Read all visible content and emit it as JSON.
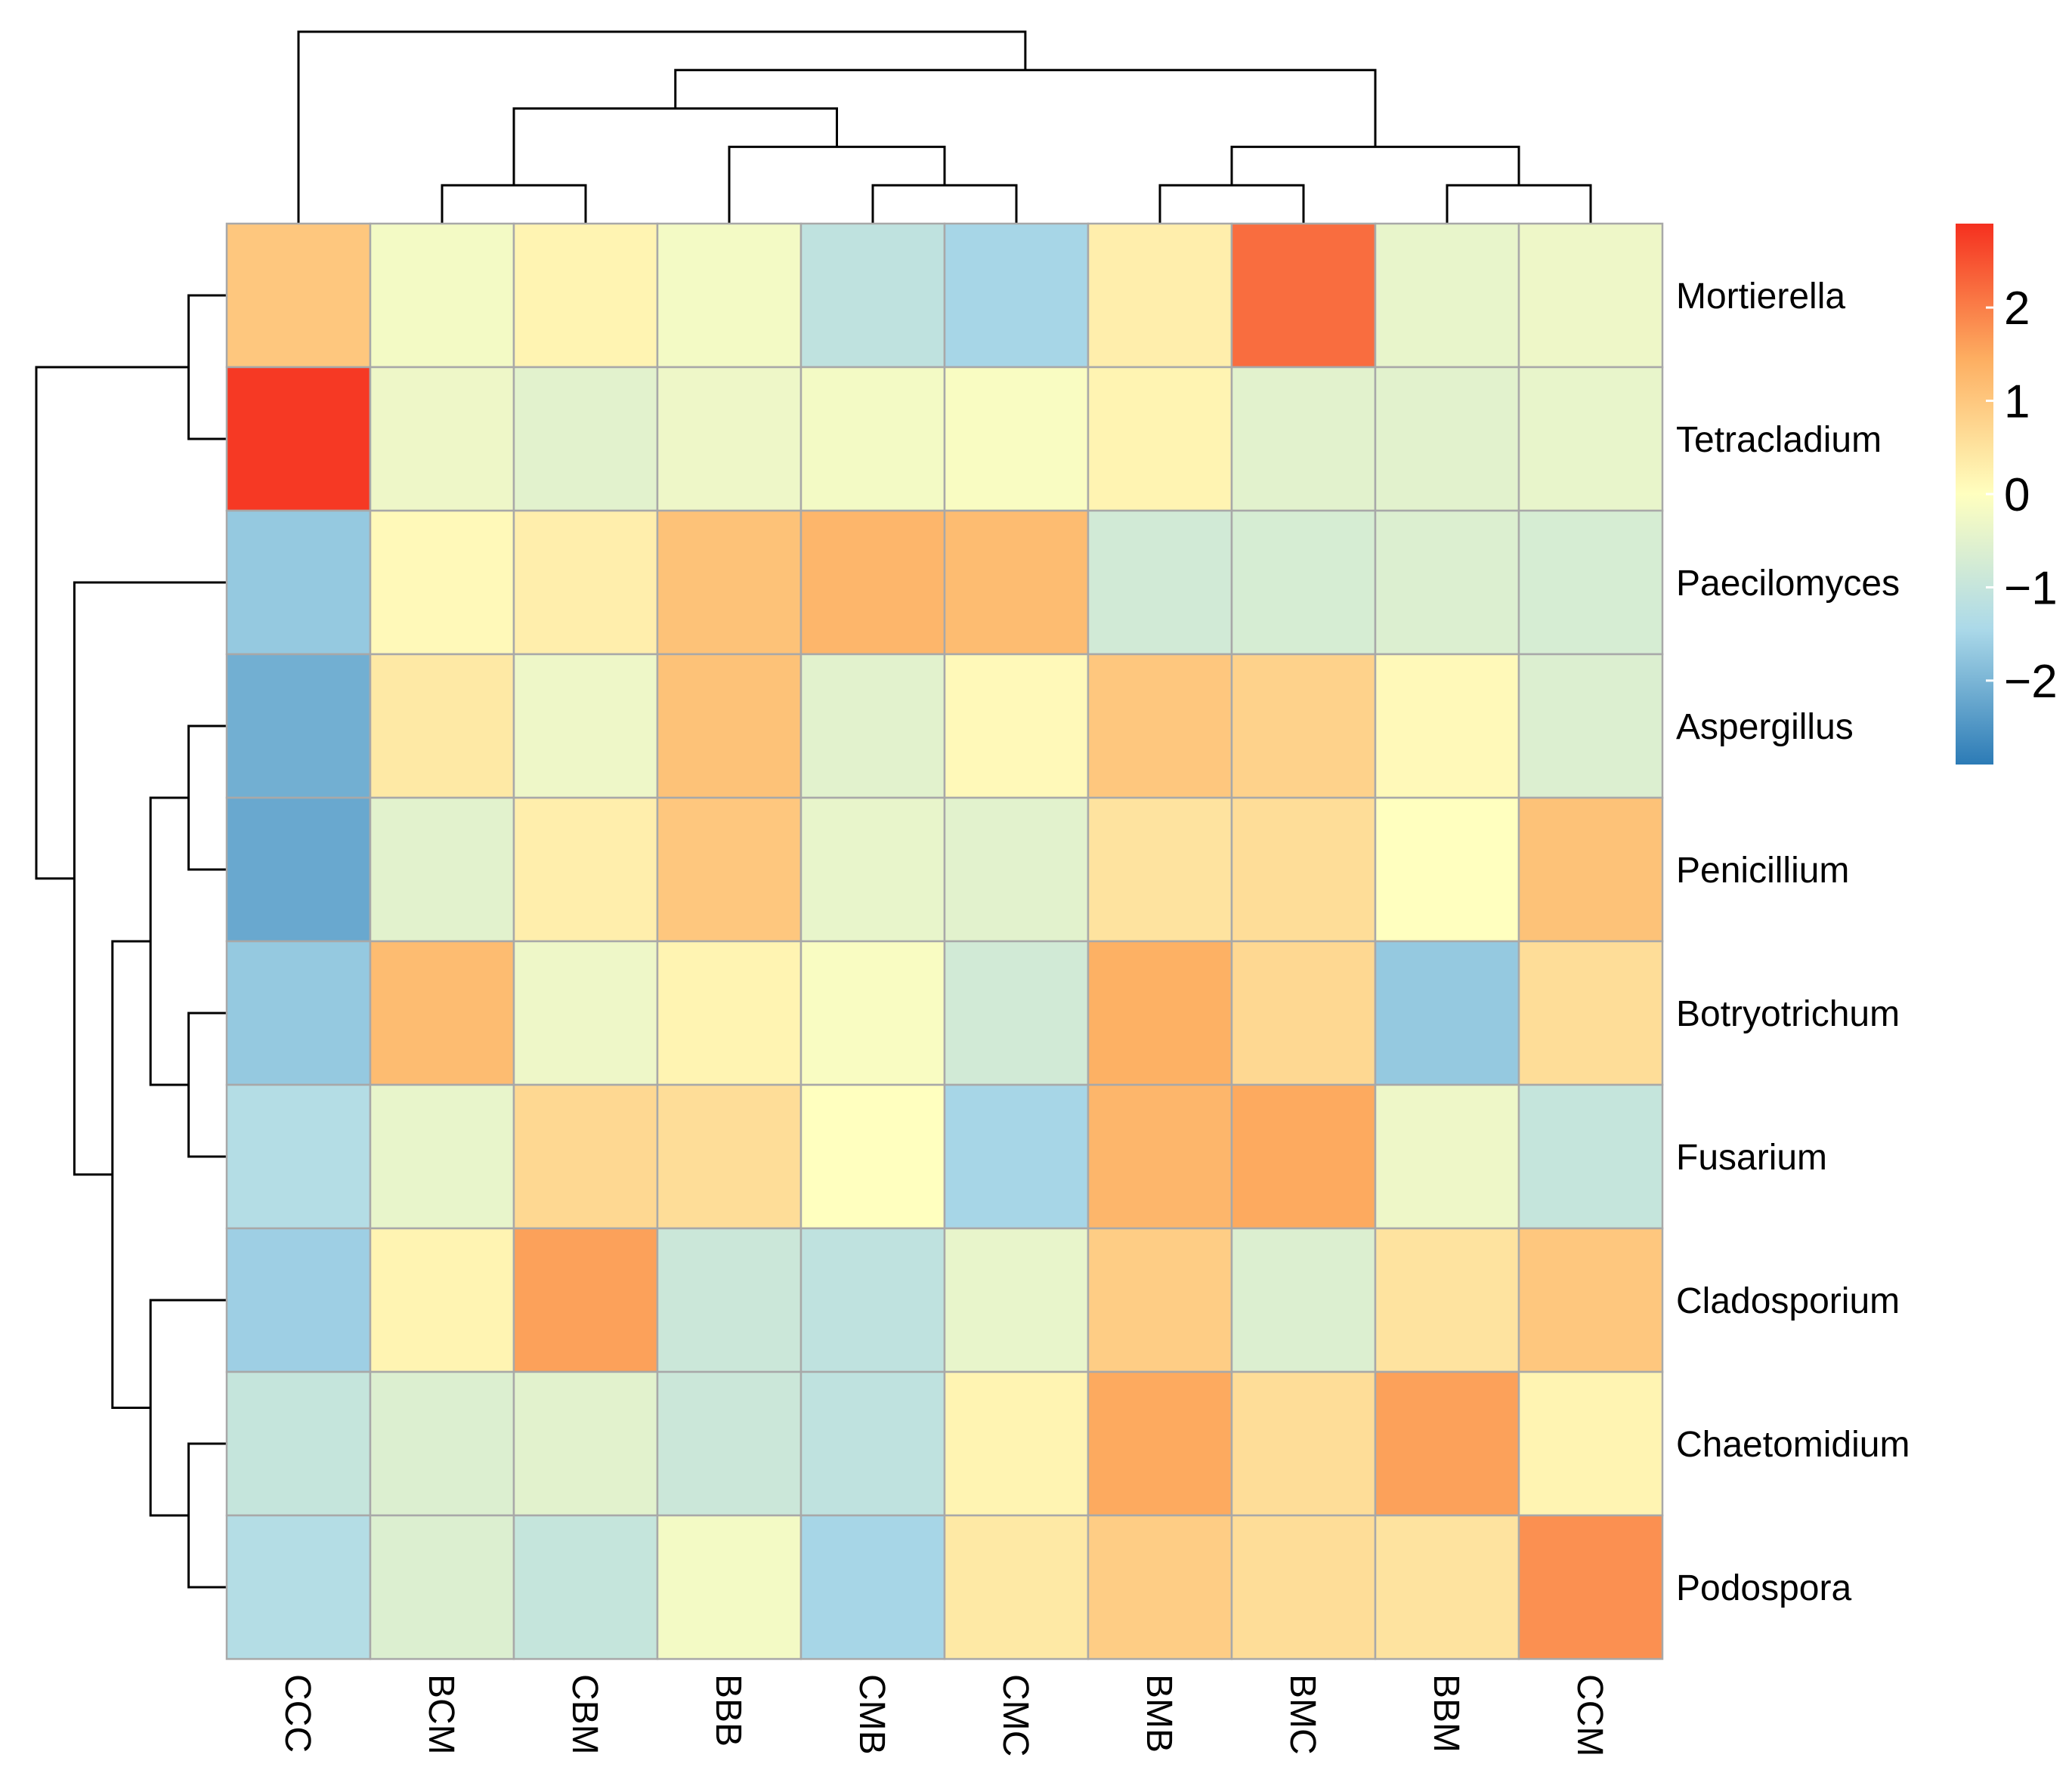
{
  "chart_data": {
    "type": "heatmap",
    "title": "",
    "rows": [
      "Mortierella",
      "Tetracladium",
      "Paecilomyces",
      "Aspergillus",
      "Penicillium",
      "Botryotrichum",
      "Fusarium",
      "Cladosporium",
      "Chaetomidium",
      "Podospora"
    ],
    "columns": [
      "CCC",
      "BCM",
      "CBM",
      "BBB",
      "CMB",
      "CMC",
      "BMB",
      "BMC",
      "BBM",
      "CCM"
    ],
    "values": [
      [
        1.0,
        -0.2,
        0.2,
        -0.2,
        -1.1,
        -1.5,
        0.3,
        2.2,
        -0.4,
        -0.3
      ],
      [
        2.8,
        -0.3,
        -0.5,
        -0.3,
        -0.2,
        -0.1,
        0.2,
        -0.5,
        -0.5,
        -0.4
      ],
      [
        -1.7,
        0.1,
        0.3,
        1.1,
        1.3,
        1.2,
        -0.8,
        -0.7,
        -0.6,
        -0.7
      ],
      [
        -2.1,
        0.4,
        -0.3,
        1.1,
        -0.5,
        0.1,
        1.0,
        0.8,
        0.1,
        -0.6
      ],
      [
        -2.2,
        -0.5,
        0.3,
        1.0,
        -0.4,
        -0.5,
        0.5,
        0.6,
        0.0,
        1.1
      ],
      [
        -1.7,
        1.2,
        -0.3,
        0.2,
        -0.1,
        -0.8,
        1.4,
        0.7,
        -1.7,
        0.6
      ],
      [
        -1.3,
        -0.4,
        0.7,
        0.6,
        0.0,
        -1.5,
        1.3,
        1.5,
        -0.3,
        -1.0
      ],
      [
        -1.6,
        0.2,
        1.6,
        -0.9,
        -1.1,
        -0.4,
        0.9,
        -0.6,
        0.5,
        1.0
      ],
      [
        -1.0,
        -0.6,
        -0.5,
        -0.9,
        -1.1,
        0.2,
        1.5,
        0.6,
        1.6,
        0.2
      ],
      [
        -1.3,
        -0.6,
        -1.0,
        -0.2,
        -1.5,
        0.4,
        0.9,
        0.6,
        0.5,
        1.8
      ]
    ],
    "legend": {
      "ticks": [
        2,
        1,
        0,
        -1,
        -2
      ],
      "tick_labels": [
        "2",
        "1",
        "0",
        "−1",
        "−2"
      ],
      "range": [
        -2.9,
        2.9
      ],
      "colors": [
        "#2c7bb6",
        "#abd9e9",
        "#ffffbf",
        "#fdae61",
        "#f5301f"
      ]
    },
    "column_tree": [
      [
        0,
        [
          [
            [
              1,
              2
            ],
            [
              3,
              [
                4,
                5
              ]
            ]
          ],
          [
            [
              6,
              7
            ],
            [
              8,
              9
            ]
          ]
        ]
      ]
    ],
    "row_tree": [
      [
        [
          0,
          1
        ],
        [
          2,
          [
            [
              [
                3,
                4
              ],
              [
                5,
                6
              ]
            ],
            [
              7,
              [
                8,
                9
              ]
            ]
          ]
        ]
      ]
    ],
    "grid": true
  }
}
